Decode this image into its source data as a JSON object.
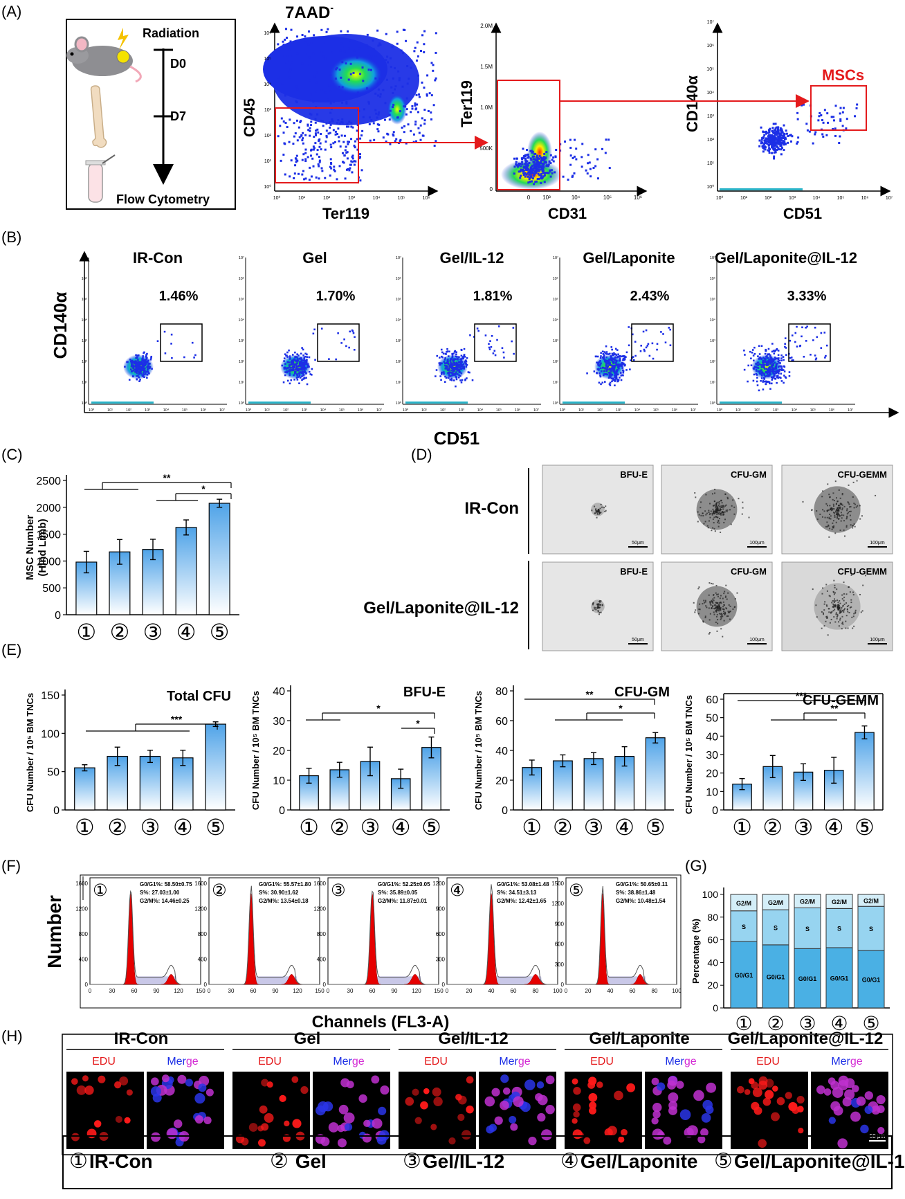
{
  "panel_labels": {
    "A": "(A)",
    "B": "(B)",
    "C": "(C)",
    "D": "(D)",
    "E": "(E)",
    "F": "(F)",
    "G": "(G)",
    "H": "(H)"
  },
  "group_numbers": [
    "①",
    "②",
    "③",
    "④",
    "⑤"
  ],
  "groups": [
    "IR-Con",
    "Gel",
    "Gel/IL-12",
    "Gel/Laponite",
    "Gel/Laponite@IL-12"
  ],
  "panelA": {
    "timeline": {
      "radiation": "Radiation",
      "d0": "D0",
      "d7": "D7",
      "flow": "Flow Cytometry"
    },
    "plot1": {
      "title": "7AAD",
      "title_sup": "-",
      "xlabel": "Ter119",
      "ylabel": "CD45",
      "xticks": [
        "10⁰",
        "10¹",
        "10²",
        "10³",
        "10⁴",
        "10⁵",
        "10⁶"
      ],
      "yticks": [
        "10⁰",
        "10¹",
        "10²",
        "10³",
        "10⁴",
        "10⁵",
        "10⁶"
      ]
    },
    "plot2": {
      "xlabel": "CD31",
      "ylabel": "Ter119",
      "xticks": [
        "0",
        "10³",
        "10⁴",
        "10⁵",
        "10⁶"
      ],
      "yticks": [
        "0",
        "500K",
        "1.0M",
        "1.5M",
        "2.0M"
      ]
    },
    "plot3": {
      "xlabel": "CD51",
      "ylabel": "CD140α",
      "gate_label": "MSCs",
      "xticks": [
        "10⁰",
        "10¹",
        "10²",
        "10³",
        "10⁴",
        "10⁵",
        "10⁶",
        "10⁷"
      ],
      "yticks": [
        "10⁰",
        "10¹",
        "10²",
        "10³",
        "10⁴",
        "10⁵",
        "10⁶",
        "10⁷"
      ]
    }
  },
  "panelB": {
    "ylabel": "CD140α",
    "xlabel": "CD51",
    "percentages": [
      "1.46%",
      "1.70%",
      "1.81%",
      "2.43%",
      "3.33%"
    ],
    "ticks": [
      "10⁰",
      "10¹",
      "10²",
      "10³",
      "10⁴",
      "10⁵",
      "10⁶",
      "10⁷"
    ]
  },
  "panelD": {
    "rows": [
      "IR-Con",
      "Gel/Laponite@IL-12"
    ],
    "cols": [
      "BFU-E",
      "CFU-GM",
      "CFU-GEMM"
    ],
    "scale_bars": [
      [
        "50μm",
        "100μm",
        "100μm"
      ],
      [
        "50μm",
        "100μm",
        "100μm"
      ]
    ]
  },
  "panelH": {
    "edu": "EDU",
    "merge": "Merge",
    "scale": "50 μm"
  },
  "colors": {
    "bar_top": "#4fa3e8",
    "bar_bottom": "#ffffff",
    "gate_red": "#e41a1c",
    "red_peak": "#e60000",
    "s_phase": "#c9c8e8"
  },
  "chart_data": [
    {
      "id": "C",
      "type": "bar",
      "ylabel": "MSC Number\n(Hind Limb)",
      "ylim": [
        0,
        2500
      ],
      "yticks": [
        0,
        500,
        1000,
        1500,
        2000,
        2500
      ],
      "categories": [
        "①",
        "②",
        "③",
        "④",
        "⑤"
      ],
      "values": [
        980,
        1170,
        1215,
        1625,
        2075
      ],
      "errors": [
        200,
        230,
        190,
        140,
        75
      ],
      "significance": [
        {
          "label": "**"
        },
        {
          "label": "*"
        }
      ]
    },
    {
      "id": "E1",
      "type": "bar",
      "title": "Total CFU",
      "ylabel": "CFU Number / 10⁵ BM TNCs",
      "ylim": [
        0,
        150
      ],
      "yticks": [
        0,
        50,
        100,
        150
      ],
      "categories": [
        "①",
        "②",
        "③",
        "④",
        "⑤"
      ],
      "values": [
        55,
        70,
        70,
        68,
        112
      ],
      "errors": [
        4,
        12,
        8,
        10,
        3
      ],
      "significance": [
        {
          "label": "***"
        }
      ]
    },
    {
      "id": "E2",
      "type": "bar",
      "title": "BFU-E",
      "ylabel": "CFU Number / 10⁵ BM TNCs",
      "ylim": [
        0,
        40
      ],
      "yticks": [
        0,
        10,
        20,
        30,
        40
      ],
      "categories": [
        "①",
        "②",
        "③",
        "④",
        "⑤"
      ],
      "values": [
        11.5,
        13.5,
        16.3,
        10.5,
        21
      ],
      "errors": [
        2.5,
        2.5,
        4.8,
        3.2,
        3.5
      ],
      "significance": [
        {
          "label": "*"
        },
        {
          "label": "*"
        }
      ]
    },
    {
      "id": "E3",
      "type": "bar",
      "title": "CFU-GM",
      "ylabel": "CFU Number / 10⁵ BM TNCs",
      "ylim": [
        0,
        80
      ],
      "yticks": [
        0,
        20,
        40,
        60,
        80
      ],
      "categories": [
        "①",
        "②",
        "③",
        "④",
        "⑤"
      ],
      "values": [
        28.5,
        33,
        34.5,
        36,
        48.5
      ],
      "errors": [
        5,
        4,
        4,
        6.5,
        3.5
      ],
      "significance": [
        {
          "label": "**"
        },
        {
          "label": "*"
        }
      ]
    },
    {
      "id": "E4",
      "type": "bar",
      "title": "CFU-GEMM",
      "ylabel": "CFU Number / 10⁵ BM TNCs",
      "ylim": [
        0,
        60
      ],
      "yticks": [
        0,
        10,
        20,
        30,
        40,
        50,
        60
      ],
      "categories": [
        "①",
        "②",
        "③",
        "④",
        "⑤"
      ],
      "values": [
        14,
        23.5,
        20.5,
        21.5,
        42
      ],
      "errors": [
        3,
        6,
        4.5,
        7,
        3.5
      ],
      "significance": [
        {
          "label": "***"
        },
        {
          "label": "**"
        }
      ]
    },
    {
      "id": "F",
      "type": "area",
      "ylabel": "Number",
      "xlabel": "Channels (FL3-A)",
      "histograms": [
        {
          "num": "①",
          "ymax": 1600,
          "yticks": [
            0,
            400,
            800,
            1200,
            1600
          ],
          "xmax": 150,
          "xticks": [
            0,
            30,
            60,
            90,
            120,
            150
          ],
          "g1_peak": 55,
          "g2_peak": 110,
          "stats": [
            "G0/G1%: 58.50±0.75",
            "S%: 27.03±1.00",
            "G2/M%: 14.46±0.25"
          ]
        },
        {
          "num": "②",
          "ymax": 1600,
          "yticks": [
            0,
            400,
            800,
            1200,
            1600
          ],
          "xmax": 150,
          "xticks": [
            0,
            30,
            60,
            90,
            120,
            150
          ],
          "g1_peak": 57,
          "g2_peak": 112,
          "stats": [
            "G0/G1%: 55.57±1.80",
            "S%: 30.90±1.62",
            "G2/M%: 13.54±0.18"
          ]
        },
        {
          "num": "③",
          "ymax": 1600,
          "yticks": [
            0,
            400,
            800,
            1200,
            1600
          ],
          "xmax": 150,
          "xticks": [
            0,
            30,
            60,
            90,
            120,
            150
          ],
          "g1_peak": 60,
          "g2_peak": 118,
          "stats": [
            "G0/G1%: 52.25±0.05",
            "S%: 35.89±0.05",
            "G2/M%: 11.87±0.01"
          ]
        },
        {
          "num": "④",
          "ymax": 1200,
          "yticks": [
            0,
            300,
            600,
            900,
            1200
          ],
          "xmax": 100,
          "xticks": [
            0,
            20,
            40,
            60,
            80,
            100
          ],
          "g1_peak": 40,
          "g2_peak": 80,
          "stats": [
            "G0/G1%: 53.08±1.48",
            "S%: 34.51±3.13",
            "G2/M%: 12.42±1.65"
          ]
        },
        {
          "num": "⑤",
          "ymax": 1500,
          "yticks": [
            0,
            300,
            600,
            900,
            1200,
            1500
          ],
          "xmax": 100,
          "xticks": [
            0,
            20,
            40,
            60,
            80,
            100
          ],
          "g1_peak": 33,
          "g2_peak": 67,
          "stats": [
            "G0/G1%: 50.65±0.11",
            "S%: 38.86±1.48",
            "G2/M%: 10.48±1.54"
          ]
        }
      ]
    },
    {
      "id": "G",
      "type": "bar",
      "stacked": true,
      "ylabel": "Percentage (%)",
      "ylim": [
        0,
        100
      ],
      "yticks": [
        0,
        20,
        40,
        60,
        80,
        100
      ],
      "categories": [
        "①",
        "②",
        "③",
        "④",
        "⑤"
      ],
      "series": [
        {
          "name": "G0/G1",
          "values": [
            58.5,
            55.57,
            52.25,
            53.08,
            50.65
          ]
        },
        {
          "name": "S",
          "values": [
            27.03,
            30.9,
            35.89,
            34.51,
            38.86
          ]
        },
        {
          "name": "G2/M",
          "values": [
            14.46,
            13.54,
            11.87,
            12.42,
            10.48
          ]
        }
      ]
    }
  ]
}
